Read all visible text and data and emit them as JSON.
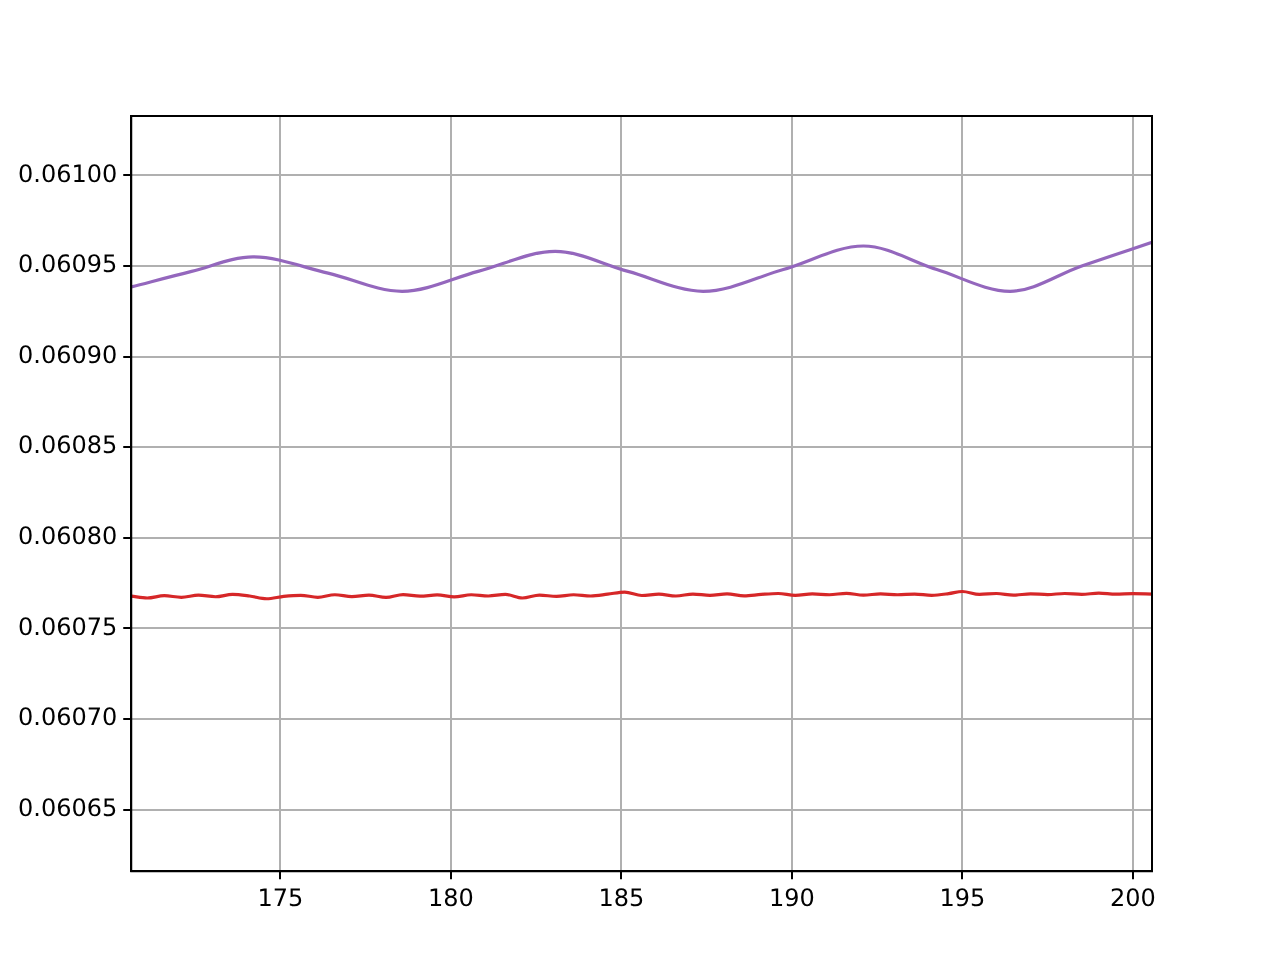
{
  "chart_data": {
    "type": "line",
    "xlim": [
      170.63,
      200.56
    ],
    "ylim": [
      0.0606161,
      0.0610327
    ],
    "xticks": [
      175,
      180,
      185,
      190,
      195,
      200
    ],
    "yticks": [
      {
        "value": 0.06065,
        "label": "0.06065"
      },
      {
        "value": 0.0607,
        "label": "0.06070"
      },
      {
        "value": 0.06075,
        "label": "0.06075"
      },
      {
        "value": 0.0608,
        "label": "0.06080"
      },
      {
        "value": 0.06085,
        "label": "0.06085"
      },
      {
        "value": 0.0609,
        "label": "0.06090"
      },
      {
        "value": 0.06095,
        "label": "0.06095"
      },
      {
        "value": 0.061,
        "label": "0.06100"
      }
    ],
    "grid": true,
    "legend": false,
    "marker": "none",
    "line_style": "solid",
    "series": [
      {
        "color": "#9467bd",
        "x": [
          170.63,
          172.4,
          174.2,
          176.4,
          178.57,
          180.8,
          183.06,
          185.2,
          187.4,
          189.75,
          192.1,
          194.25,
          196.4,
          198.5,
          200.56
        ],
        "values": [
          0.0609384,
          0.060947,
          0.060955,
          0.060946,
          0.060936,
          0.060947,
          0.060958,
          0.060947,
          0.060936,
          0.060948,
          0.060961,
          0.060948,
          0.060936,
          0.06095,
          0.060963
        ]
      },
      {
        "color": "#d62728",
        "x": [
          170.63,
          171.1,
          171.6,
          172.1,
          172.6,
          173.1,
          173.6,
          174.1,
          174.6,
          175.1,
          175.6,
          176.1,
          176.6,
          177.1,
          177.6,
          178.1,
          178.6,
          179.1,
          179.6,
          180.1,
          180.6,
          181.1,
          181.6,
          182.1,
          182.6,
          183.1,
          183.6,
          184.1,
          184.6,
          185.1,
          185.6,
          186.1,
          186.6,
          187.1,
          187.6,
          188.1,
          188.6,
          189.1,
          189.6,
          190.1,
          190.6,
          191.1,
          191.6,
          192.1,
          192.6,
          193.1,
          193.6,
          194.1,
          194.6,
          195.0,
          195.5,
          196.0,
          196.5,
          197.0,
          197.5,
          198.0,
          198.5,
          199.0,
          199.5,
          200.0,
          200.56
        ],
        "values": [
          0.0607678,
          0.0607668,
          0.0607681,
          0.0607672,
          0.0607684,
          0.0607675,
          0.0607688,
          0.0607679,
          0.0607664,
          0.0607677,
          0.0607683,
          0.0607672,
          0.0607686,
          0.0607676,
          0.0607684,
          0.0607671,
          0.0607687,
          0.0607678,
          0.0607685,
          0.0607674,
          0.0607686,
          0.0607679,
          0.0607688,
          0.0607668,
          0.0607684,
          0.0607677,
          0.0607686,
          0.0607679,
          0.0607689,
          0.0607701,
          0.0607682,
          0.0607689,
          0.0607679,
          0.060769,
          0.0607683,
          0.0607691,
          0.060768,
          0.0607688,
          0.0607693,
          0.0607683,
          0.0607691,
          0.0607686,
          0.0607694,
          0.0607684,
          0.0607691,
          0.0607686,
          0.060769,
          0.0607683,
          0.0607692,
          0.0607704,
          0.0607688,
          0.0607693,
          0.0607684,
          0.0607691,
          0.0607687,
          0.0607693,
          0.0607688,
          0.0607695,
          0.0607689,
          0.0607692,
          0.060769
        ]
      }
    ]
  }
}
